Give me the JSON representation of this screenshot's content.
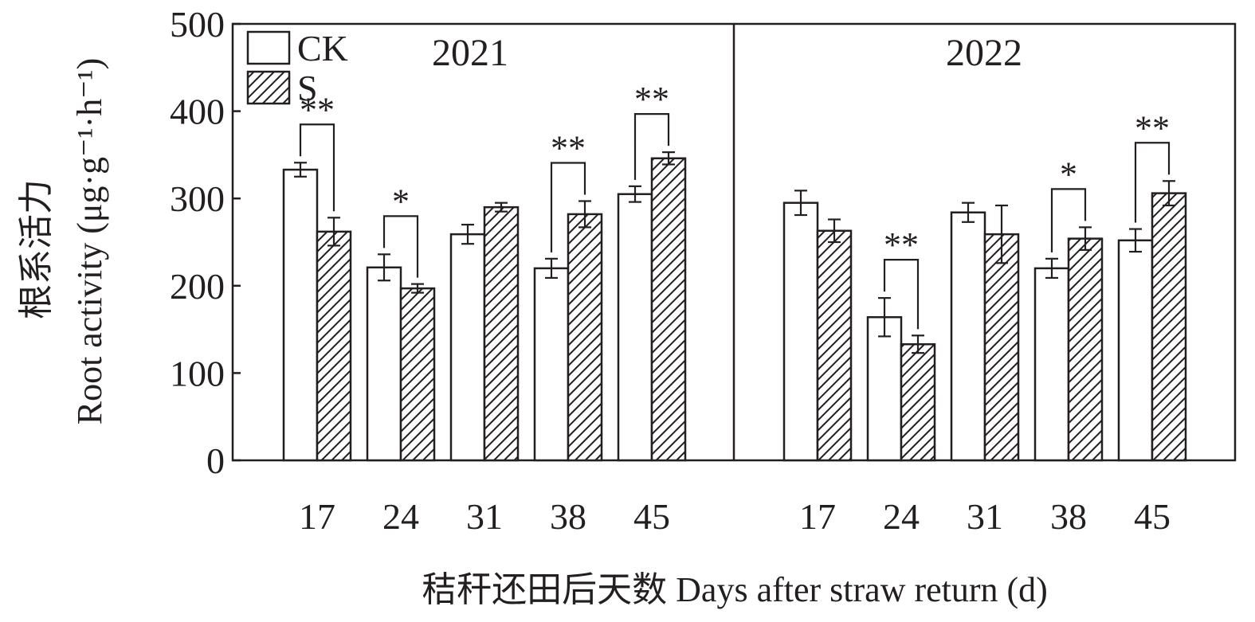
{
  "chart_data": {
    "type": "bar",
    "ylabel_cn": "根系活力",
    "ylabel_en": "Root activity (μg·g⁻¹·h⁻¹)",
    "xlabel": "秸秆还田后天数 Days after straw return (d)",
    "ylim": [
      0,
      500
    ],
    "yticks": [
      "0",
      "100",
      "200",
      "300",
      "400",
      "500"
    ],
    "legend": {
      "placement": "top-left",
      "entries": [
        {
          "label": "CK",
          "pattern": "open"
        },
        {
          "label": "S",
          "pattern": "hatched"
        }
      ]
    },
    "colors": {
      "ink": "#231f20",
      "open_fill": "#ffffff"
    },
    "panels": [
      {
        "title": "2021",
        "categories": [
          "17",
          "24",
          "31",
          "38",
          "45"
        ],
        "series": [
          {
            "name": "CK",
            "values": [
              333,
              221,
              259,
              220,
              305
            ],
            "errors": [
              8,
              15,
              11,
              11,
              9
            ]
          },
          {
            "name": "S",
            "values": [
              262,
              197,
              290,
              282,
              346
            ],
            "errors": [
              16,
              5,
              5,
              15,
              7
            ]
          }
        ],
        "significance": [
          "**",
          "*",
          "",
          "**",
          "**"
        ]
      },
      {
        "title": "2022",
        "categories": [
          "17",
          "24",
          "31",
          "38",
          "45"
        ],
        "series": [
          {
            "name": "CK",
            "values": [
              295,
              164,
              284,
              220,
              252
            ],
            "errors": [
              14,
              22,
              11,
              11,
              13
            ]
          },
          {
            "name": "S",
            "values": [
              263,
              133,
              259,
              254,
              306
            ],
            "errors": [
              13,
              10,
              33,
              13,
              14
            ]
          }
        ],
        "significance": [
          "",
          "**",
          "",
          "*",
          "**"
        ]
      }
    ]
  }
}
